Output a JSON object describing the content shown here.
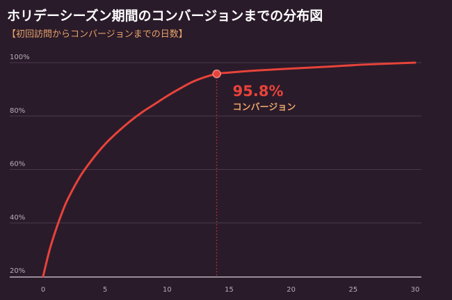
{
  "colors": {
    "background": "#2a1b2a",
    "curve": "#e8433a",
    "grid": "#4a3a4a",
    "subtitle": "#e8a36a",
    "tick_text": "#b9aeb9"
  },
  "chart_data": {
    "type": "line",
    "title": "ホリデーシーズン期間のコンバージョンまでの分布図",
    "subtitle": "【初回訪問からコンバージョンまでの日数】",
    "xlabel": "",
    "ylabel": "",
    "xlim": [
      0,
      30
    ],
    "ylim": [
      20,
      100
    ],
    "x_ticks": [
      0,
      5,
      10,
      15,
      20,
      25,
      30
    ],
    "y_ticks": [
      20,
      40,
      60,
      80,
      100
    ],
    "y_tick_labels": [
      "20%",
      "40%",
      "60%",
      "80%",
      "100%"
    ],
    "grid": true,
    "series": [
      {
        "x": [
          0,
          0.5,
          1,
          1.5,
          2,
          3,
          4,
          5,
          6,
          7,
          8,
          9,
          10,
          11,
          12,
          13,
          14,
          15,
          17,
          20,
          23,
          26,
          30
        ],
        "y": [
          20,
          29.5,
          37,
          43.5,
          49,
          57.5,
          64,
          69.5,
          74,
          78,
          81.5,
          84.5,
          87.5,
          90.2,
          92.7,
          94.5,
          95.8,
          96.3,
          97,
          97.8,
          98.5,
          99.3,
          100
        ]
      }
    ],
    "annotation": {
      "x": 14,
      "y": 95.8,
      "value": "95.8%",
      "label": "コンバージョン"
    }
  }
}
